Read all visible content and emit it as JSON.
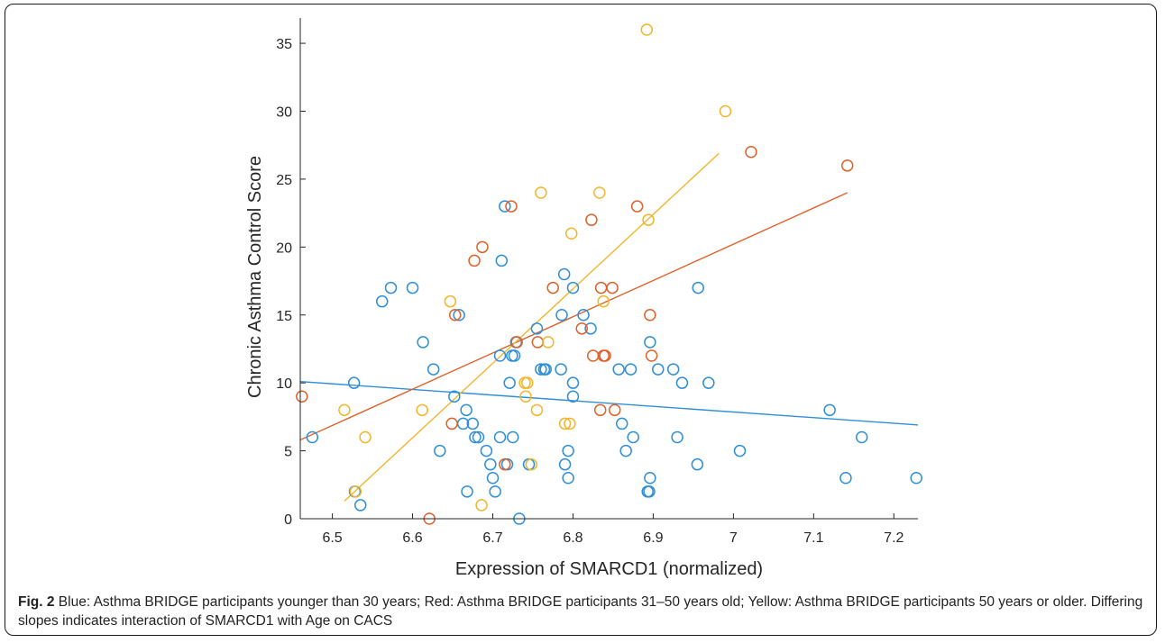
{
  "caption": {
    "label": "Fig. 2",
    "text": "Blue: Asthma BRIDGE participants younger than 30 years; Red: Asthma BRIDGE participants 31–50 years old; Yellow: Asthma BRIDGE participants 50 years or older. Differing slopes indicates interaction of SMARCD1 with Age on CACS"
  },
  "chart_data": {
    "type": "scatter",
    "xlabel": "Expression of SMARCD1 (normalized)",
    "ylabel": "Chronic Asthma Control Score",
    "xlim": [
      6.46,
      7.23
    ],
    "ylim": [
      0,
      36
    ],
    "xticks": [
      6.5,
      6.6,
      6.7,
      6.8,
      6.9,
      7,
      7.1,
      7.2
    ],
    "yticks": [
      0,
      5,
      10,
      15,
      20,
      25,
      30,
      35
    ],
    "colors": {
      "blue": "#2f8fd6",
      "red": "#e0612b",
      "yellow": "#f1b62b"
    },
    "series": [
      {
        "color": "#2f8fd6",
        "points": [
          [
            6.475,
            6
          ],
          [
            6.527,
            10
          ],
          [
            6.528,
            2
          ],
          [
            6.535,
            1
          ],
          [
            6.562,
            16
          ],
          [
            6.573,
            17
          ],
          [
            6.6,
            17
          ],
          [
            6.613,
            13
          ],
          [
            6.626,
            11
          ],
          [
            6.634,
            5
          ],
          [
            6.652,
            9
          ],
          [
            6.658,
            15
          ],
          [
            6.663,
            7
          ],
          [
            6.667,
            8
          ],
          [
            6.668,
            2
          ],
          [
            6.675,
            7
          ],
          [
            6.678,
            6
          ],
          [
            6.682,
            6
          ],
          [
            6.692,
            5
          ],
          [
            6.697,
            4
          ],
          [
            6.7,
            3
          ],
          [
            6.703,
            2
          ],
          [
            6.709,
            6
          ],
          [
            6.709,
            12
          ],
          [
            6.711,
            19
          ],
          [
            6.715,
            23
          ],
          [
            6.718,
            4
          ],
          [
            6.721,
            10
          ],
          [
            6.724,
            12
          ],
          [
            6.725,
            6
          ],
          [
            6.727,
            12
          ],
          [
            6.729,
            13
          ],
          [
            6.733,
            0
          ],
          [
            6.745,
            4
          ],
          [
            6.755,
            14
          ],
          [
            6.76,
            11
          ],
          [
            6.764,
            11
          ],
          [
            6.766,
            11
          ],
          [
            6.785,
            11
          ],
          [
            6.786,
            15
          ],
          [
            6.789,
            18
          ],
          [
            6.79,
            4
          ],
          [
            6.794,
            3
          ],
          [
            6.794,
            5
          ],
          [
            6.8,
            10
          ],
          [
            6.8,
            9
          ],
          [
            6.8,
            17
          ],
          [
            6.813,
            15
          ],
          [
            6.822,
            14
          ],
          [
            6.857,
            11
          ],
          [
            6.861,
            7
          ],
          [
            6.866,
            5
          ],
          [
            6.872,
            11
          ],
          [
            6.875,
            6
          ],
          [
            6.893,
            2
          ],
          [
            6.895,
            2
          ],
          [
            6.896,
            3
          ],
          [
            6.896,
            13
          ],
          [
            6.906,
            11
          ],
          [
            6.925,
            11
          ],
          [
            6.93,
            6
          ],
          [
            6.936,
            10
          ],
          [
            6.955,
            4
          ],
          [
            6.956,
            17
          ],
          [
            6.969,
            10
          ],
          [
            7.008,
            5
          ],
          [
            7.12,
            8
          ],
          [
            7.14,
            3
          ],
          [
            7.16,
            6
          ],
          [
            7.228,
            3
          ]
        ],
        "fit": [
          [
            6.46,
            10.1
          ],
          [
            7.23,
            6.9
          ]
        ]
      },
      {
        "color": "#e0612b",
        "points": [
          [
            6.462,
            9
          ],
          [
            6.621,
            0
          ],
          [
            6.649,
            7
          ],
          [
            6.653,
            15
          ],
          [
            6.677,
            19
          ],
          [
            6.687,
            20
          ],
          [
            6.715,
            4
          ],
          [
            6.723,
            23
          ],
          [
            6.73,
            13
          ],
          [
            6.756,
            13
          ],
          [
            6.775,
            17
          ],
          [
            6.811,
            14
          ],
          [
            6.823,
            22
          ],
          [
            6.825,
            12
          ],
          [
            6.834,
            8
          ],
          [
            6.835,
            17
          ],
          [
            6.838,
            12
          ],
          [
            6.84,
            12
          ],
          [
            6.849,
            17
          ],
          [
            6.852,
            8
          ],
          [
            6.88,
            23
          ],
          [
            6.896,
            15
          ],
          [
            6.898,
            12
          ],
          [
            7.022,
            27
          ],
          [
            7.142,
            26
          ]
        ],
        "fit": [
          [
            6.46,
            5.8
          ],
          [
            7.142,
            24.0
          ]
        ]
      },
      {
        "color": "#f1b62b",
        "points": [
          [
            6.515,
            8
          ],
          [
            6.529,
            2
          ],
          [
            6.541,
            6
          ],
          [
            6.612,
            8
          ],
          [
            6.647,
            16
          ],
          [
            6.686,
            1
          ],
          [
            6.74,
            10
          ],
          [
            6.741,
            9
          ],
          [
            6.743,
            10
          ],
          [
            6.748,
            4
          ],
          [
            6.755,
            8
          ],
          [
            6.76,
            24
          ],
          [
            6.769,
            13
          ],
          [
            6.79,
            7
          ],
          [
            6.796,
            7
          ],
          [
            6.798,
            21
          ],
          [
            6.833,
            24
          ],
          [
            6.838,
            16
          ],
          [
            6.892,
            36
          ],
          [
            6.894,
            22
          ],
          [
            6.99,
            30
          ]
        ],
        "fit": [
          [
            6.515,
            1.3
          ],
          [
            6.982,
            26.9
          ]
        ]
      }
    ]
  }
}
